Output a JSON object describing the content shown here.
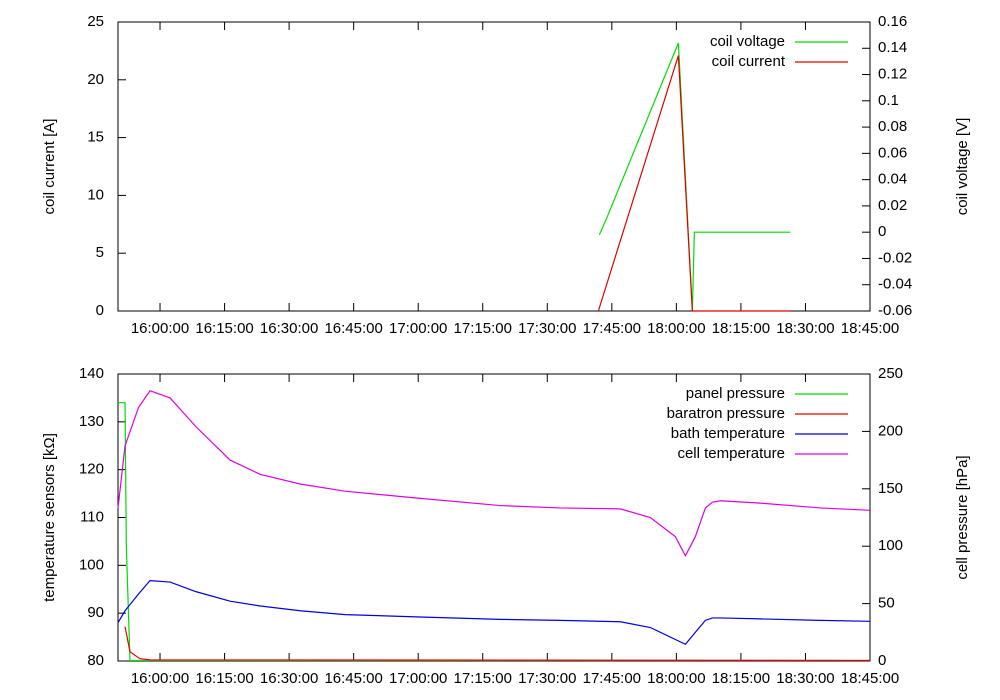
{
  "chart_data": [
    {
      "type": "line",
      "y_label": "coil current [A]",
      "y2_label": "coil voltage [V]",
      "xlim": [
        57014,
        67500
      ],
      "xticks": [
        {
          "value": 57600,
          "label": "16:00:00"
        },
        {
          "value": 58500,
          "label": "16:15:00"
        },
        {
          "value": 59400,
          "label": "16:30:00"
        },
        {
          "value": 60300,
          "label": "16:45:00"
        },
        {
          "value": 61200,
          "label": "17:00:00"
        },
        {
          "value": 62100,
          "label": "17:15:00"
        },
        {
          "value": 63000,
          "label": "17:30:00"
        },
        {
          "value": 63900,
          "label": "17:45:00"
        },
        {
          "value": 64800,
          "label": "18:00:00"
        },
        {
          "value": 65700,
          "label": "18:15:00"
        },
        {
          "value": 66600,
          "label": "18:30:00"
        },
        {
          "value": 67500,
          "label": "18:45:00"
        }
      ],
      "ylim": [
        0,
        25
      ],
      "yticks": [
        0,
        5,
        10,
        15,
        20,
        25
      ],
      "y2lim": [
        -0.06,
        0.16
      ],
      "y2ticks": [
        -0.06,
        -0.04,
        -0.02,
        0,
        0.02,
        0.04,
        0.06,
        0.08,
        0.1,
        0.12,
        0.14,
        0.16
      ],
      "legend": "top right",
      "series": [
        {
          "name": "coil voltage",
          "color": "#00dd00",
          "axis": "y2",
          "x": [
            63726,
            63823,
            64828,
            65023,
            65051,
            66391
          ],
          "values": [
            -0.002,
            0.01,
            0.144,
            -0.06,
            0,
            0
          ]
        },
        {
          "name": "coil current",
          "color": "#e00000",
          "x": [
            63712,
            64828,
            65023,
            66391
          ],
          "values": [
            0,
            22.1,
            0,
            0
          ]
        }
      ]
    },
    {
      "type": "line",
      "y_label": "temperature sensors [kΩ]",
      "y2_label": "cell pressure [hPa]",
      "xlim": [
        57014,
        67500
      ],
      "xticks": [
        {
          "value": 57600,
          "label": "16:00:00"
        },
        {
          "value": 58500,
          "label": "16:15:00"
        },
        {
          "value": 59400,
          "label": "16:30:00"
        },
        {
          "value": 60300,
          "label": "16:45:00"
        },
        {
          "value": 61200,
          "label": "17:00:00"
        },
        {
          "value": 62100,
          "label": "17:15:00"
        },
        {
          "value": 63000,
          "label": "17:30:00"
        },
        {
          "value": 63900,
          "label": "17:45:00"
        },
        {
          "value": 64800,
          "label": "18:00:00"
        },
        {
          "value": 65700,
          "label": "18:15:00"
        },
        {
          "value": 66600,
          "label": "18:30:00"
        },
        {
          "value": 67500,
          "label": "18:45:00"
        }
      ],
      "ylim": [
        80,
        140
      ],
      "yticks": [
        80,
        90,
        100,
        110,
        120,
        130,
        140
      ],
      "y2lim": [
        0,
        250
      ],
      "y2ticks": [
        0,
        50,
        100,
        150,
        200,
        250
      ],
      "legend": "top right",
      "series": [
        {
          "name": "panel pressure",
          "color": "#00dd00",
          "axis": "y2",
          "x": [
            57014,
            57112,
            57130,
            57181,
            67500
          ],
          "values": [
            225,
            225,
            100,
            0.5,
            0.5
          ]
        },
        {
          "name": "baratron pressure",
          "color": "#e00000",
          "axis": "y2",
          "x": [
            57112,
            57181,
            57321,
            57460,
            67500
          ],
          "values": [
            30,
            8,
            2,
            1,
            0.5
          ]
        },
        {
          "name": "bath temperature",
          "color": "#0000e0",
          "x": [
            57014,
            57112,
            57300,
            57460,
            57740,
            58100,
            58577,
            59000,
            59553,
            60181,
            61228,
            62344,
            63181,
            64018,
            64437,
            64786,
            64926,
            65065,
            65205,
            65302,
            65414,
            65972,
            66809,
            67500
          ],
          "values": [
            88,
            90.5,
            94,
            96.8,
            96.5,
            94.5,
            92.5,
            91.5,
            90.5,
            89.7,
            89.2,
            88.7,
            88.5,
            88.2,
            87,
            84.5,
            83.5,
            86,
            88.5,
            89,
            89,
            88.8,
            88.5,
            88.3
          ]
        },
        {
          "name": "cell temperature",
          "color": "#e000e0",
          "x": [
            57014,
            57112,
            57300,
            57460,
            57740,
            58100,
            58577,
            59000,
            59553,
            60181,
            61228,
            62344,
            63181,
            64018,
            64437,
            64786,
            64926,
            65065,
            65205,
            65302,
            65414,
            65972,
            66809,
            67500
          ],
          "values": [
            112,
            125,
            133,
            136.5,
            135,
            129,
            122,
            119,
            117,
            115.5,
            114,
            112.5,
            112,
            111.8,
            110,
            106,
            102,
            106,
            112,
            113.2,
            113.5,
            113,
            112,
            111.5
          ]
        }
      ]
    }
  ]
}
